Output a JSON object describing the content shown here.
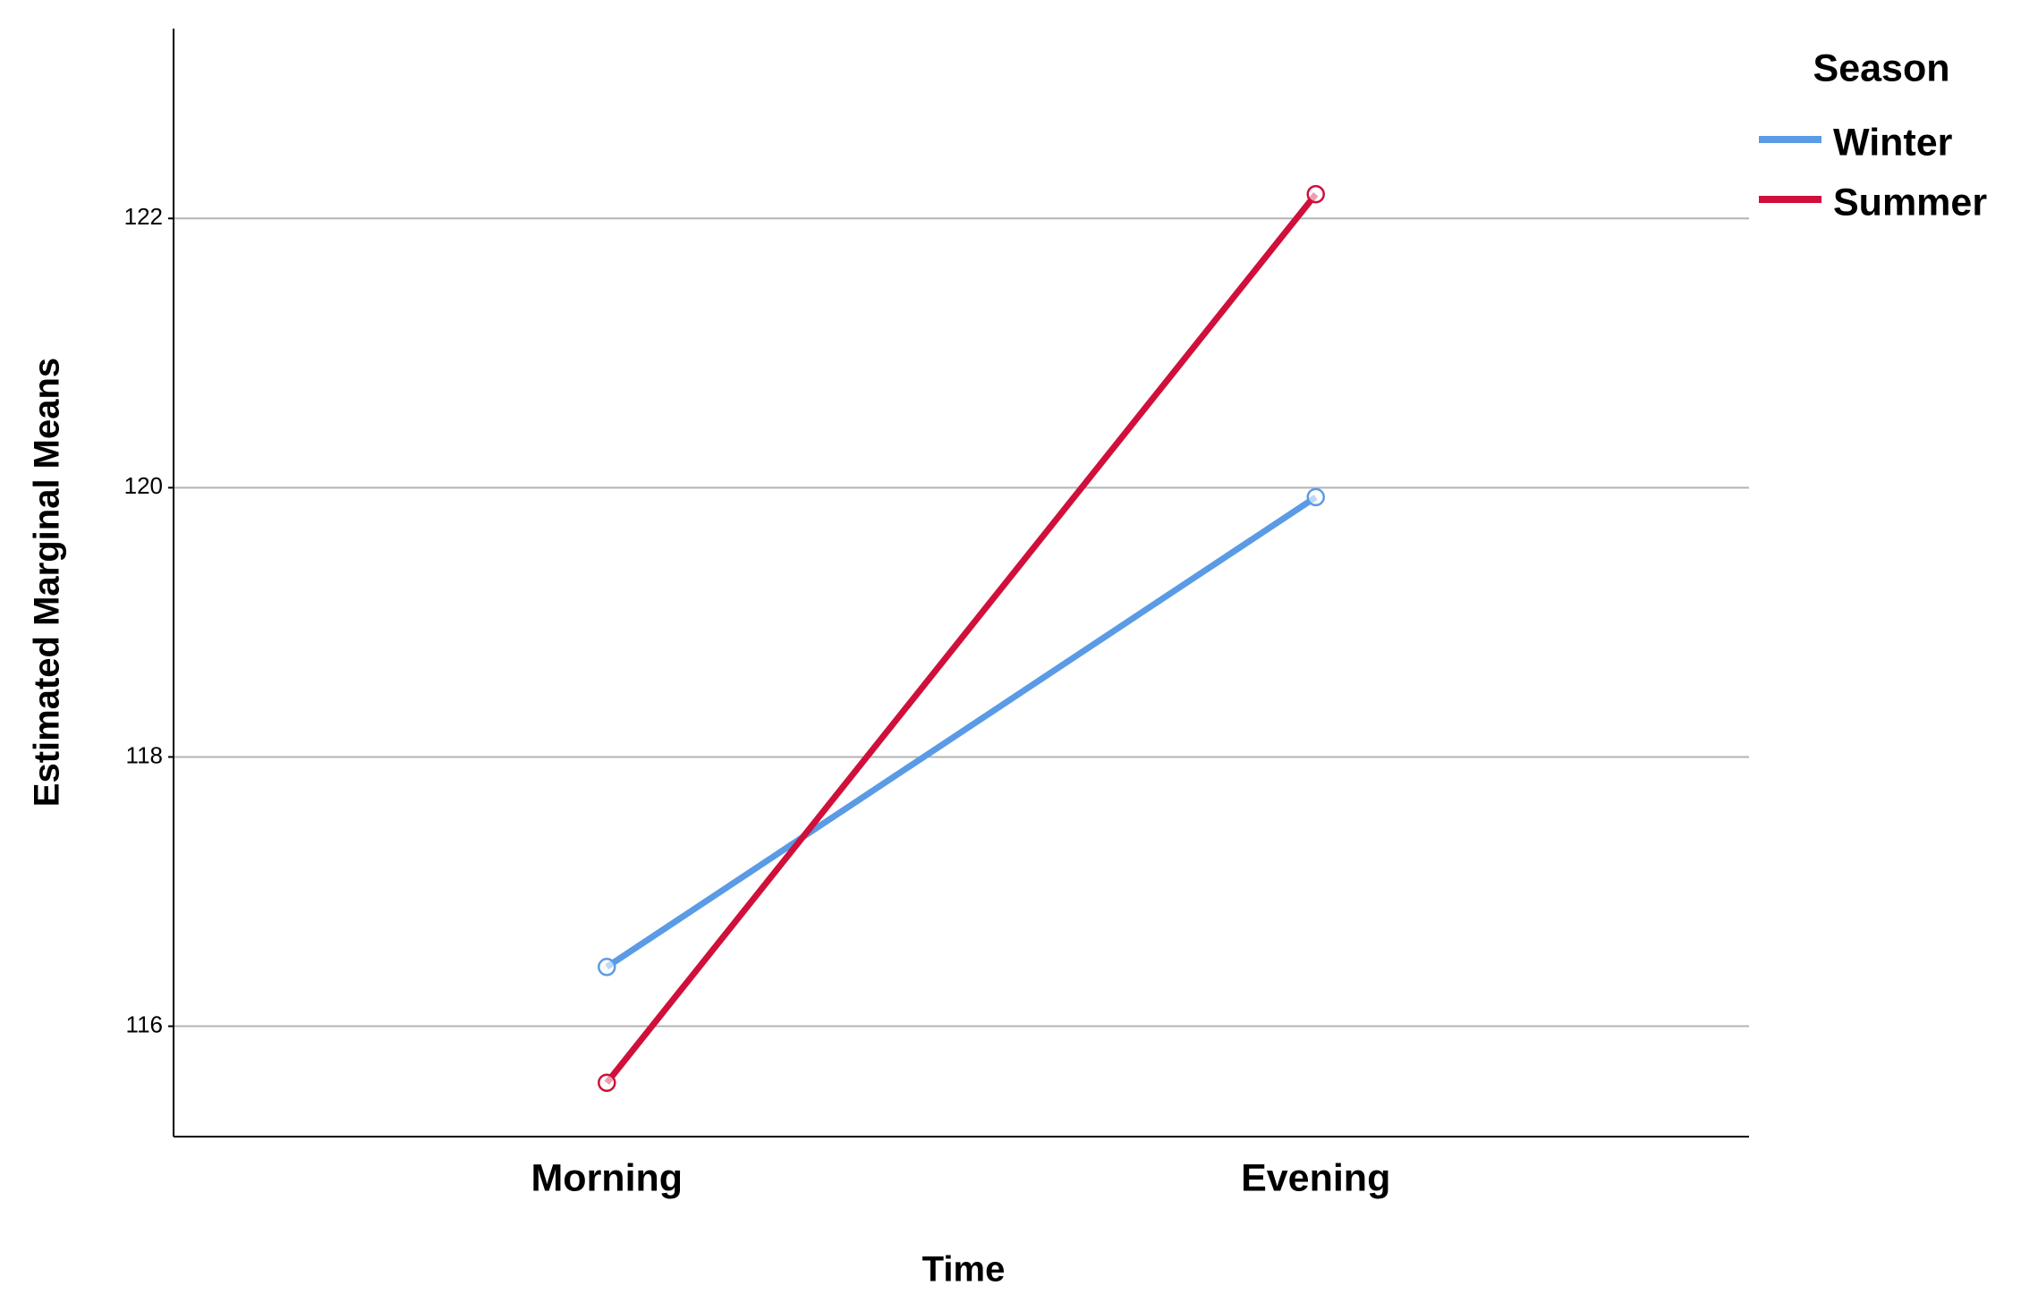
{
  "chart_data": {
    "type": "line",
    "x_label": "Time",
    "y_label": "Estimated Marginal Means",
    "legend_title": "Season",
    "categories": [
      "Morning",
      "Evening"
    ],
    "series": [
      {
        "name": "Winter",
        "color": "#5b9be6",
        "values": [
          116.44,
          119.93
        ]
      },
      {
        "name": "Summer",
        "color": "#d0103a",
        "values": [
          115.58,
          122.18
        ]
      }
    ],
    "ylim": [
      115.18,
      123.41
    ],
    "yticks": [
      116,
      118,
      120,
      122
    ],
    "grid": true
  }
}
